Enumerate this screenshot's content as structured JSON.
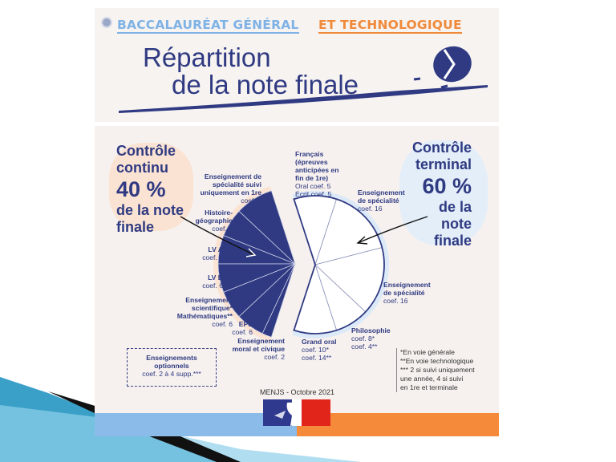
{
  "header": {
    "kicker_part1": "BACCALAURÉAT GÉNÉRAL",
    "kicker_part2": "ET TECHNOLOGIQUE",
    "title_line1": "Répartition",
    "title_line2": "de la note finale"
  },
  "colors": {
    "navy": "#2f3a82",
    "light_blue": "#8bbbe9",
    "orange": "#f58a3a",
    "peach": "#fbe3d3"
  },
  "controle_continu": {
    "line1": "Contrôle",
    "line2": "continu",
    "percent": "40 %",
    "line3": "de la note",
    "line4": "finale",
    "subjects": [
      {
        "name": "Enseignement de spécialité suivi uniquement en 1re",
        "coef_label": "coef. 8",
        "coef": 8
      },
      {
        "name": "Histoire-géographie",
        "coef_label": "coef. 6",
        "coef": 6
      },
      {
        "name": "LV A",
        "coef_label": "coef. 6",
        "coef": 6
      },
      {
        "name": "LV B",
        "coef_label": "coef. 6",
        "coef": 6
      },
      {
        "name": "Enseignement scientifique* Mathématiques**",
        "coef_label": "coef. 6",
        "coef": 6
      },
      {
        "name": "EPS",
        "coef_label": "coef. 6",
        "coef": 6
      },
      {
        "name": "Enseignement moral et civique",
        "coef_label": "coef. 2",
        "coef": 2
      }
    ]
  },
  "controle_terminal": {
    "line1": "Contrôle",
    "line2": "terminal",
    "percent": "60 %",
    "line3": "de la",
    "line4": "note",
    "line5": "finale",
    "subjects": [
      {
        "name": "Français (épreuves anticipées en fin de 1re)",
        "coef_label": "Oral coef. 5",
        "coef_label2": "Écrit coef. 5",
        "coef": 10
      },
      {
        "name": "Enseignement de spécialité",
        "coef_label": "coef. 16",
        "coef": 16
      },
      {
        "name": "Enseignement de spécialité",
        "coef_label": "coef. 16",
        "coef": 16
      },
      {
        "name": "Philosophie",
        "coef_label": "coef. 8*",
        "coef_label2": "coef. 4**",
        "coef": 8
      },
      {
        "name": "Grand oral",
        "coef_label": "coef. 10*",
        "coef_label2": "coef. 14**",
        "coef": 10
      }
    ]
  },
  "optional": {
    "line1": "Enseignements",
    "line2": "optionnels",
    "coef_label": "coef. 2 à 4 supp.***"
  },
  "notes": [
    "*En voie générale",
    "**En voie technologique",
    "*** 2 si suivi uniquement",
    "une année, 4 si suivi",
    "en 1re et terminale"
  ],
  "source": "MENJS - Octobre 2021"
}
